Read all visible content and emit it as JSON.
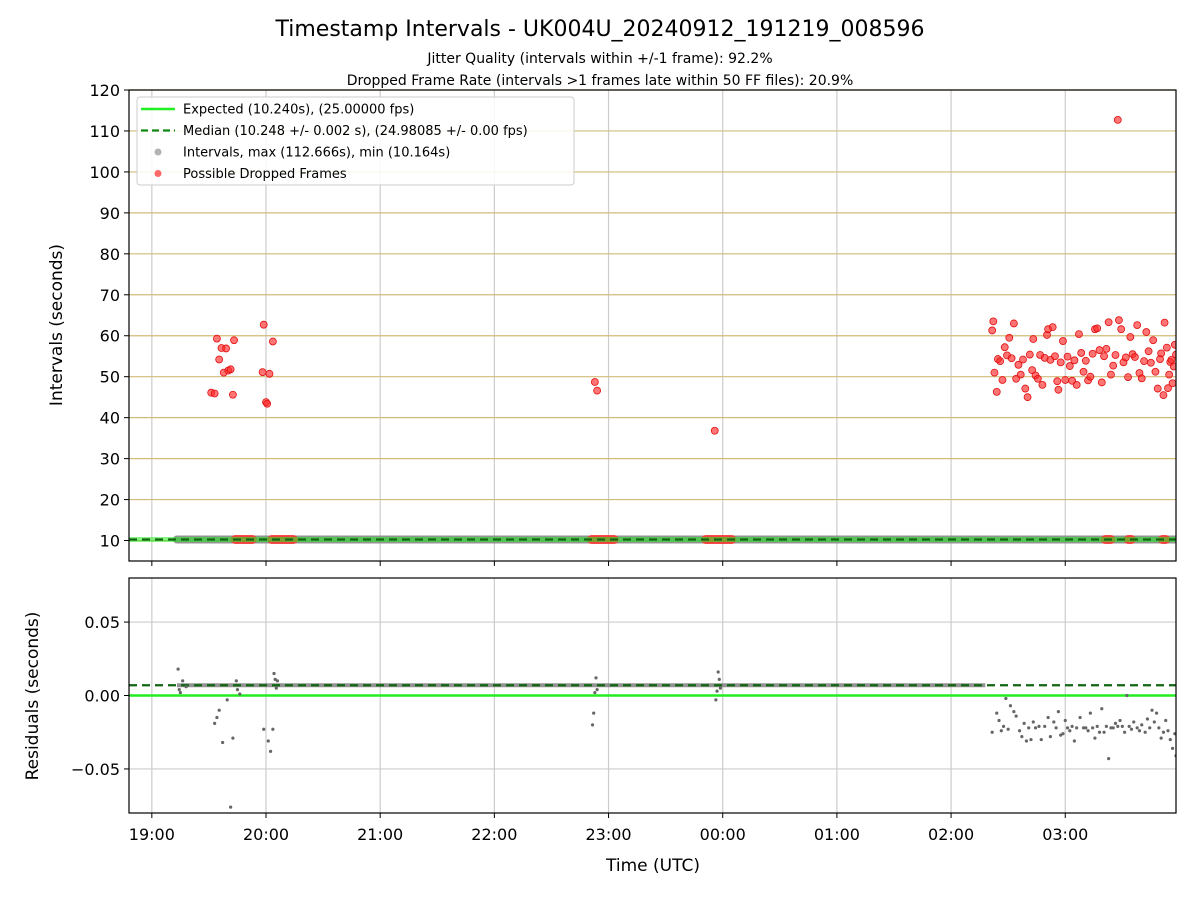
{
  "chart_data": [
    {
      "type": "scatter",
      "title": "Timestamp Intervals - UK004U_20240912_191219_008596",
      "subtitle_lines": [
        "Jitter Quality (intervals within +/-1 frame): 92.2%",
        "Dropped Frame Rate (intervals >1 frames late within 50 FF files): 20.9%"
      ],
      "ylabel": "Intervals (seconds)",
      "x_range_hours": [
        18.8,
        27.97
      ],
      "ylim": [
        5,
        120
      ],
      "y_ticks": [
        10,
        20,
        30,
        40,
        50,
        60,
        70,
        80,
        90,
        100,
        110,
        120
      ],
      "grid": true,
      "legend_position": "top-left",
      "legend": [
        {
          "label": "Expected (10.240s), (25.00000 fps)",
          "kind": "solid-line",
          "color": "#22ee22"
        },
        {
          "label": "Median (10.248 +/- 0.002 s), (24.98085 +/- 0.00 fps)",
          "kind": "dashed-line",
          "color": "#118811"
        },
        {
          "label": "Intervals, max (112.666s), min (10.164s)",
          "kind": "dot",
          "color": "#888888"
        },
        {
          "label": "Possible Dropped Frames",
          "kind": "dot",
          "color": "#ff3333"
        }
      ],
      "expected_interval": 10.24,
      "median_interval": 10.248,
      "series": [
        {
          "name": "Possible Dropped Frames",
          "color": "#ff3333",
          "points": [
            [
              19.52,
              46.1
            ],
            [
              19.55,
              45.9
            ],
            [
              19.57,
              59.3
            ],
            [
              19.59,
              54.2
            ],
            [
              19.61,
              57.0
            ],
            [
              19.63,
              51.0
            ],
            [
              19.65,
              56.9
            ],
            [
              19.67,
              51.5
            ],
            [
              19.69,
              51.8
            ],
            [
              19.71,
              45.6
            ],
            [
              19.72,
              58.9
            ],
            [
              19.98,
              62.7
            ],
            [
              19.97,
              51.1
            ],
            [
              20.0,
              43.8
            ],
            [
              20.01,
              43.4
            ],
            [
              20.03,
              50.7
            ],
            [
              20.06,
              58.6
            ],
            [
              22.88,
              48.7
            ],
            [
              22.9,
              46.6
            ],
            [
              23.93,
              36.8
            ],
            [
              26.37,
              63.5
            ],
            [
              26.36,
              61.3
            ],
            [
              26.38,
              51.0
            ],
            [
              26.4,
              46.3
            ],
            [
              26.41,
              54.3
            ],
            [
              26.43,
              53.8
            ],
            [
              26.45,
              49.2
            ],
            [
              26.47,
              57.2
            ],
            [
              26.49,
              55.2
            ],
            [
              26.51,
              59.5
            ],
            [
              26.53,
              54.5
            ],
            [
              26.55,
              63.0
            ],
            [
              26.57,
              49.5
            ],
            [
              26.59,
              52.9
            ],
            [
              26.61,
              50.5
            ],
            [
              26.63,
              54.2
            ],
            [
              26.65,
              47.1
            ],
            [
              26.67,
              45.0
            ],
            [
              26.69,
              55.4
            ],
            [
              26.71,
              51.6
            ],
            [
              26.72,
              59.2
            ],
            [
              26.74,
              50.3
            ],
            [
              26.76,
              49.5
            ],
            [
              26.78,
              55.3
            ],
            [
              26.8,
              48.0
            ],
            [
              26.82,
              54.6
            ],
            [
              26.84,
              60.2
            ],
            [
              26.85,
              61.6
            ],
            [
              26.87,
              54.1
            ],
            [
              26.89,
              62.1
            ],
            [
              26.91,
              55.0
            ],
            [
              26.93,
              48.9
            ],
            [
              26.94,
              46.8
            ],
            [
              26.96,
              53.5
            ],
            [
              26.98,
              58.7
            ],
            [
              27.0,
              49.2
            ],
            [
              27.02,
              54.9
            ],
            [
              27.04,
              52.6
            ],
            [
              27.06,
              49.0
            ],
            [
              27.08,
              54.0
            ],
            [
              27.1,
              48.0
            ],
            [
              27.12,
              60.4
            ],
            [
              27.14,
              55.8
            ],
            [
              27.16,
              51.2
            ],
            [
              27.18,
              53.9
            ],
            [
              27.2,
              49.1
            ],
            [
              27.22,
              50.0
            ],
            [
              27.24,
              55.6
            ],
            [
              27.26,
              61.6
            ],
            [
              27.28,
              61.8
            ],
            [
              27.3,
              56.5
            ],
            [
              27.32,
              48.6
            ],
            [
              27.34,
              55.0
            ],
            [
              27.36,
              56.8
            ],
            [
              27.38,
              63.3
            ],
            [
              27.4,
              50.5
            ],
            [
              27.42,
              52.7
            ],
            [
              27.44,
              55.3
            ],
            [
              27.46,
              112.7
            ],
            [
              27.47,
              63.8
            ],
            [
              27.49,
              61.6
            ],
            [
              27.51,
              53.5
            ],
            [
              27.53,
              54.7
            ],
            [
              27.55,
              49.9
            ],
            [
              27.57,
              59.7
            ],
            [
              27.59,
              55.5
            ],
            [
              27.61,
              54.8
            ],
            [
              27.63,
              62.6
            ],
            [
              27.65,
              50.9
            ],
            [
              27.67,
              49.6
            ],
            [
              27.69,
              53.8
            ],
            [
              27.71,
              60.9
            ],
            [
              27.73,
              56.2
            ],
            [
              27.75,
              53.4
            ],
            [
              27.77,
              58.9
            ],
            [
              27.79,
              51.2
            ],
            [
              27.81,
              47.1
            ],
            [
              27.83,
              54.3
            ],
            [
              27.84,
              55.7
            ],
            [
              27.86,
              45.5
            ],
            [
              27.87,
              63.2
            ],
            [
              27.89,
              57.1
            ],
            [
              27.9,
              47.2
            ],
            [
              27.91,
              50.5
            ],
            [
              27.92,
              53.6
            ],
            [
              27.93,
              54.1
            ],
            [
              27.94,
              48.4
            ],
            [
              27.95,
              52.5
            ],
            [
              27.96,
              57.8
            ],
            [
              27.97,
              55.4
            ]
          ],
          "baseline_clusters_hours": [
            [
              19.73,
              19.88
            ],
            [
              20.05,
              20.24
            ],
            [
              22.85,
              23.05
            ],
            [
              23.85,
              24.08
            ],
            [
              27.35,
              27.4
            ],
            [
              27.55,
              27.58
            ],
            [
              27.85,
              27.88
            ]
          ]
        },
        {
          "name": "Intervals, max (112.666s), min (10.164s)",
          "color": "#888888",
          "baseline_value": 10.25,
          "baseline_span_hours": [
            19.22,
            27.97
          ]
        }
      ]
    },
    {
      "type": "scatter",
      "xlabel": "Time (UTC)",
      "ylabel": "Residuals (seconds)",
      "x_range_hours": [
        18.8,
        27.97
      ],
      "ylim": [
        -0.08,
        0.08
      ],
      "y_ticks": [
        -0.05,
        0.0,
        0.05
      ],
      "y_tick_labels": [
        "−0.05",
        "0.00",
        "0.05"
      ],
      "x_ticks_hours": [
        19,
        20,
        21,
        22,
        23,
        24,
        25,
        26,
        27
      ],
      "x_tick_labels": [
        "19:00",
        "20:00",
        "21:00",
        "22:00",
        "23:00",
        "00:00",
        "01:00",
        "02:00",
        "03:00"
      ],
      "grid": true,
      "expected_residual": 0.0,
      "median_residual": 0.007,
      "series": [
        {
          "name": "Residuals",
          "color": "#777777",
          "band_value": 0.007,
          "band_span_hours": [
            19.22,
            26.3
          ],
          "points": [
            [
              19.23,
              0.018
            ],
            [
              19.24,
              0.004
            ],
            [
              19.25,
              0.002
            ],
            [
              19.27,
              0.01
            ],
            [
              19.3,
              0.006
            ],
            [
              19.55,
              -0.019
            ],
            [
              19.57,
              -0.015
            ],
            [
              19.59,
              -0.01
            ],
            [
              19.62,
              -0.032
            ],
            [
              19.66,
              -0.003
            ],
            [
              19.69,
              -0.076
            ],
            [
              19.71,
              -0.029
            ],
            [
              19.74,
              0.01
            ],
            [
              19.75,
              0.004
            ],
            [
              19.77,
              0.001
            ],
            [
              19.98,
              -0.023
            ],
            [
              20.02,
              -0.031
            ],
            [
              20.04,
              -0.038
            ],
            [
              20.06,
              -0.023
            ],
            [
              20.07,
              0.015
            ],
            [
              20.08,
              0.011
            ],
            [
              20.09,
              0.005
            ],
            [
              20.1,
              0.01
            ],
            [
              22.86,
              -0.02
            ],
            [
              22.87,
              -0.012
            ],
            [
              22.88,
              0.002
            ],
            [
              22.89,
              0.012
            ],
            [
              22.9,
              0.004
            ],
            [
              23.94,
              -0.003
            ],
            [
              23.95,
              0.003
            ],
            [
              23.96,
              0.016
            ],
            [
              23.97,
              0.011
            ],
            [
              23.98,
              0.005
            ],
            [
              26.36,
              -0.025
            ],
            [
              26.4,
              -0.012
            ],
            [
              26.42,
              -0.017
            ],
            [
              26.44,
              -0.024
            ],
            [
              26.46,
              -0.021
            ],
            [
              26.48,
              -0.002
            ],
            [
              26.5,
              -0.023
            ],
            [
              26.52,
              -0.007
            ],
            [
              26.55,
              -0.011
            ],
            [
              26.57,
              -0.014
            ],
            [
              26.6,
              -0.024
            ],
            [
              26.62,
              -0.028
            ],
            [
              26.64,
              -0.019
            ],
            [
              26.66,
              -0.031
            ],
            [
              26.68,
              -0.022
            ],
            [
              26.7,
              -0.03
            ],
            [
              26.72,
              -0.018
            ],
            [
              26.74,
              -0.022
            ],
            [
              26.77,
              -0.021
            ],
            [
              26.79,
              -0.03
            ],
            [
              26.82,
              -0.021
            ],
            [
              26.85,
              -0.015
            ],
            [
              26.87,
              -0.028
            ],
            [
              26.9,
              -0.018
            ],
            [
              26.92,
              -0.022
            ],
            [
              26.94,
              -0.011
            ],
            [
              26.96,
              -0.027
            ],
            [
              26.98,
              -0.026
            ],
            [
              27.0,
              -0.017
            ],
            [
              27.02,
              -0.022
            ],
            [
              27.04,
              -0.024
            ],
            [
              27.06,
              -0.021
            ],
            [
              27.08,
              -0.031
            ],
            [
              27.1,
              -0.022
            ],
            [
              27.13,
              -0.015
            ],
            [
              27.16,
              -0.022
            ],
            [
              27.18,
              -0.022
            ],
            [
              27.2,
              -0.024
            ],
            [
              27.22,
              -0.012
            ],
            [
              27.24,
              -0.022
            ],
            [
              27.26,
              -0.029
            ],
            [
              27.28,
              -0.021
            ],
            [
              27.3,
              -0.025
            ],
            [
              27.32,
              -0.009
            ],
            [
              27.34,
              -0.025
            ],
            [
              27.36,
              -0.021
            ],
            [
              27.38,
              -0.043
            ],
            [
              27.4,
              -0.022
            ],
            [
              27.42,
              -0.022
            ],
            [
              27.44,
              -0.019
            ],
            [
              27.46,
              -0.021
            ],
            [
              27.48,
              -0.017
            ],
            [
              27.5,
              -0.021
            ],
            [
              27.52,
              -0.025
            ],
            [
              27.54,
              0.0
            ],
            [
              27.56,
              -0.021
            ],
            [
              27.58,
              -0.023
            ],
            [
              27.6,
              -0.018
            ],
            [
              27.63,
              -0.022
            ],
            [
              27.65,
              -0.024
            ],
            [
              27.67,
              -0.02
            ],
            [
              27.7,
              -0.025
            ],
            [
              27.72,
              -0.016
            ],
            [
              27.74,
              -0.022
            ],
            [
              27.76,
              -0.01
            ],
            [
              27.78,
              -0.018
            ],
            [
              27.8,
              -0.012
            ],
            [
              27.82,
              -0.022
            ],
            [
              27.84,
              -0.029
            ],
            [
              27.86,
              -0.025
            ],
            [
              27.88,
              -0.017
            ],
            [
              27.9,
              -0.024
            ],
            [
              27.92,
              -0.03
            ],
            [
              27.94,
              -0.036
            ],
            [
              27.96,
              -0.026
            ],
            [
              27.97,
              -0.041
            ]
          ]
        }
      ]
    }
  ]
}
